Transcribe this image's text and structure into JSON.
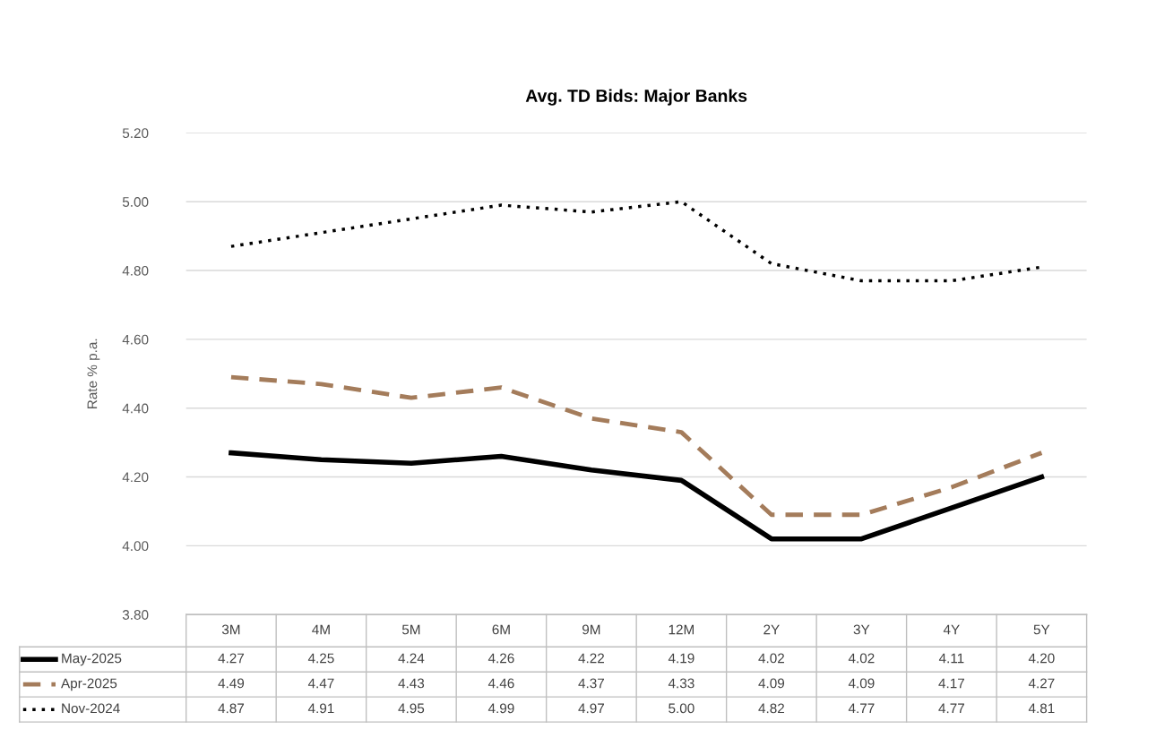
{
  "chart_data": {
    "type": "line",
    "title": "Avg. TD Bids: Major Banks",
    "ylabel": "Rate % p.a.",
    "categories": [
      "3M",
      "4M",
      "5M",
      "6M",
      "9M",
      "12M",
      "2Y",
      "3Y",
      "4Y",
      "5Y"
    ],
    "series": [
      {
        "name": "May-2025",
        "color": "#000000",
        "line_style": "solid",
        "values": [
          4.27,
          4.25,
          4.24,
          4.26,
          4.22,
          4.19,
          4.02,
          4.02,
          4.11,
          4.2
        ],
        "value_labels": [
          "4.27",
          "4.25",
          "4.24",
          "4.26",
          "4.22",
          "4.19",
          "4.02",
          "4.02",
          "4.11",
          "4.20"
        ]
      },
      {
        "name": "Apr-2025",
        "color": "#a47c5b",
        "line_style": "dashed",
        "values": [
          4.49,
          4.47,
          4.43,
          4.46,
          4.37,
          4.33,
          4.09,
          4.09,
          4.17,
          4.27
        ],
        "value_labels": [
          "4.49",
          "4.47",
          "4.43",
          "4.46",
          "4.37",
          "4.33",
          "4.09",
          "4.09",
          "4.17",
          "4.27"
        ]
      },
      {
        "name": "Nov-2024",
        "color": "#000000",
        "line_style": "dotted",
        "values": [
          4.87,
          4.91,
          4.95,
          4.99,
          4.97,
          5.0,
          4.82,
          4.77,
          4.77,
          4.81
        ],
        "value_labels": [
          "4.87",
          "4.91",
          "4.95",
          "4.99",
          "4.97",
          "5.00",
          "4.82",
          "4.77",
          "4.77",
          "4.81"
        ]
      }
    ],
    "ylim": [
      3.8,
      5.2
    ],
    "yticks": [
      {
        "value": 3.8,
        "label": "3.80"
      },
      {
        "value": 4.0,
        "label": "4.00"
      },
      {
        "value": 4.2,
        "label": "4.20"
      },
      {
        "value": 4.4,
        "label": "4.40"
      },
      {
        "value": 4.6,
        "label": "4.60"
      },
      {
        "value": 4.8,
        "label": "4.80"
      },
      {
        "value": 5.0,
        "label": "5.00"
      },
      {
        "value": 5.2,
        "label": "5.20"
      }
    ],
    "grid": "y",
    "legend": "bottom left",
    "marker": "none"
  }
}
